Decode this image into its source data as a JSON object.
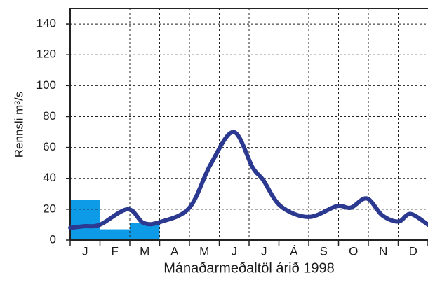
{
  "chart_data": {
    "type": "combo",
    "ylabel": "Rennsli m³/s",
    "xlabel": "Mánaðarmeðaltöl árið 1998",
    "categories": [
      "J",
      "F",
      "M",
      "A",
      "M",
      "J",
      "J",
      "Á",
      "S",
      "O",
      "N",
      "D"
    ],
    "ylim": [
      0,
      150
    ],
    "yticks": [
      0,
      20,
      40,
      60,
      80,
      100,
      120,
      140
    ],
    "xlim": [
      0,
      12
    ],
    "grid": true,
    "bars": {
      "color": "#0d9ae6",
      "values": [
        26,
        7,
        11,
        null,
        null,
        null,
        null,
        null,
        null,
        null,
        null,
        null
      ]
    },
    "line": {
      "color": "#2b3990",
      "x": [
        0,
        0.47,
        1.0,
        1.93,
        2.47,
        3.06,
        4.0,
        4.71,
        5.48,
        6.12,
        6.47,
        7.06,
        8.0,
        8.94,
        9.41,
        9.95,
        10.47,
        11.01,
        11.41,
        12.0
      ],
      "values": [
        8,
        9,
        10,
        20,
        11,
        12,
        21,
        49,
        70,
        47,
        39,
        22,
        15,
        22,
        21,
        27,
        16,
        12,
        17,
        10
      ]
    }
  }
}
